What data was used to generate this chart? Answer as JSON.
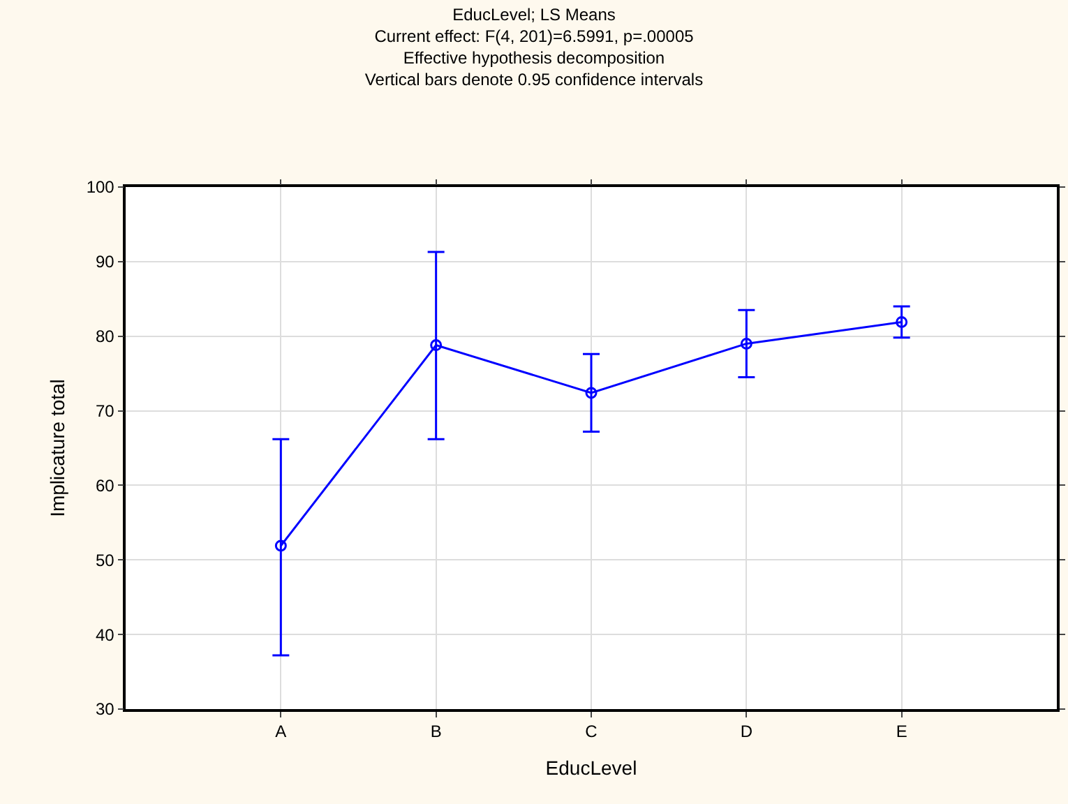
{
  "chart_data": {
    "type": "line",
    "title": "EducLevel; LS Means",
    "subtitle": "Current effect: F(4, 201)=6.5991, p=.00005\nEffective hypothesis decomposition\nVertical bars denote 0.95 confidence intervals",
    "xlabel": "EducLevel",
    "ylabel": "Implicature total",
    "categories": [
      "A",
      "B",
      "C",
      "D",
      "E"
    ],
    "series": [
      {
        "color": "#0000ff",
        "values": [
          51.9,
          78.8,
          72.4,
          79.0,
          81.9
        ],
        "errors": [
          [
            37.2,
            66.2
          ],
          [
            66.2,
            91.3
          ],
          [
            67.2,
            77.6
          ],
          [
            74.5,
            83.5
          ],
          [
            79.8,
            84.0
          ]
        ]
      }
    ],
    "ylim": [
      30,
      100
    ],
    "yticks": [
      30,
      40,
      50,
      60,
      70,
      80,
      90,
      100
    ],
    "grid": true,
    "marker": "circle",
    "line_style": "solid"
  }
}
